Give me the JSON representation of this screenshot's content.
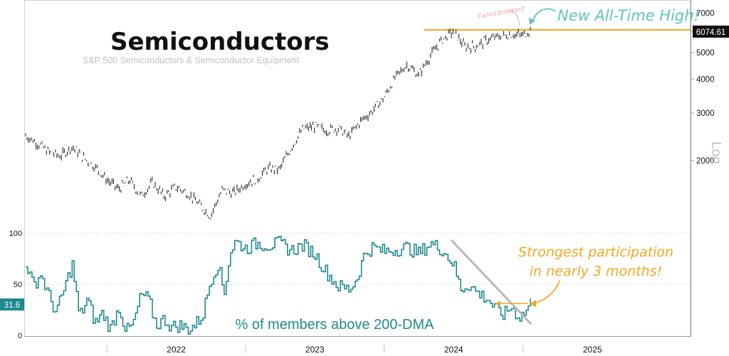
{
  "chart_data": [
    {
      "type": "line",
      "title": "Semiconductors",
      "subtitle": "S&P 500 Semiconductors & Semiconductor Equipment",
      "scale": "log",
      "scale_label": "Log",
      "y_ticks": [
        2000,
        3000,
        4000,
        5000,
        6000,
        7000
      ],
      "y_tick_labels": [
        "2000",
        "3000",
        "4000",
        "5000",
        "",
        "7000"
      ],
      "ylim": [
        1150,
        7500
      ],
      "last_value": 6074.61,
      "last_value_label": "6074.61",
      "reference_line": 6074.61,
      "annotation": "New All-Time High!",
      "annotation_faded": "Failed breakout",
      "series": [
        {
          "values_by_date": [
            [
              "2021-06-01",
              2480
            ],
            [
              "2021-07-01",
              2330
            ],
            [
              "2021-08-01",
              2150
            ],
            [
              "2021-09-01",
              2080
            ],
            [
              "2021-10-01",
              2250
            ],
            [
              "2021-11-01",
              2050
            ],
            [
              "2021-12-01",
              1900
            ],
            [
              "2022-01-01",
              1700
            ],
            [
              "2022-02-01",
              1570
            ],
            [
              "2022-03-01",
              1700
            ],
            [
              "2022-04-01",
              1480
            ],
            [
              "2022-05-01",
              1660
            ],
            [
              "2022-06-01",
              1480
            ],
            [
              "2022-07-01",
              1600
            ],
            [
              "2022-08-01",
              1520
            ],
            [
              "2022-09-01",
              1380
            ],
            [
              "2022-10-01",
              1250
            ],
            [
              "2022-11-01",
              1560
            ],
            [
              "2022-12-01",
              1520
            ],
            [
              "2023-01-01",
              1650
            ],
            [
              "2023-02-01",
              1720
            ],
            [
              "2023-03-01",
              1870
            ],
            [
              "2023-04-01",
              1860
            ],
            [
              "2023-05-01",
              2230
            ],
            [
              "2023-06-01",
              2610
            ],
            [
              "2023-07-01",
              2680
            ],
            [
              "2023-08-01",
              2590
            ],
            [
              "2023-09-01",
              2640
            ],
            [
              "2023-10-01",
              2460
            ],
            [
              "2023-11-01",
              2810
            ],
            [
              "2023-12-01",
              3050
            ],
            [
              "2024-01-01",
              3420
            ],
            [
              "2024-02-01",
              4080
            ],
            [
              "2024-03-01",
              4520
            ],
            [
              "2024-04-01",
              4130
            ],
            [
              "2024-05-01",
              4850
            ],
            [
              "2024-06-01",
              5570
            ],
            [
              "2024-07-01",
              6000
            ],
            [
              "2024-08-01",
              5250
            ],
            [
              "2024-09-01",
              5300
            ],
            [
              "2024-10-01",
              5600
            ],
            [
              "2024-11-01",
              5750
            ],
            [
              "2024-12-01",
              5850
            ],
            [
              "2025-01-01",
              5800
            ],
            [
              "2025-01-20",
              6074.61
            ]
          ]
        }
      ]
    },
    {
      "type": "line",
      "label": "% of members above 200-DMA",
      "y_ticks": [
        0,
        50,
        100
      ],
      "ylim": [
        0,
        100
      ],
      "last_value": 31.6,
      "last_value_label": "31.6",
      "annotation": "Strongest participation in nearly 3 months!",
      "annotation_line1": "Strongest participation",
      "annotation_line2": "in nearly 3 months!",
      "series": [
        {
          "values_by_date": [
            [
              "2021-06-01",
              72
            ],
            [
              "2021-06-20",
              48
            ],
            [
              "2021-07-10",
              60
            ],
            [
              "2021-08-01",
              38
            ],
            [
              "2021-08-20",
              22
            ],
            [
              "2021-09-10",
              45
            ],
            [
              "2021-10-01",
              70
            ],
            [
              "2021-10-20",
              18
            ],
            [
              "2021-11-10",
              35
            ],
            [
              "2021-12-01",
              12
            ],
            [
              "2021-12-20",
              22
            ],
            [
              "2022-01-10",
              6
            ],
            [
              "2022-02-01",
              28
            ],
            [
              "2022-02-20",
              4
            ],
            [
              "2022-03-10",
              10
            ],
            [
              "2022-04-01",
              40
            ],
            [
              "2022-04-20",
              35
            ],
            [
              "2022-05-10",
              10
            ],
            [
              "2022-06-01",
              16
            ],
            [
              "2022-06-20",
              8
            ],
            [
              "2022-07-10",
              10
            ],
            [
              "2022-08-01",
              6
            ],
            [
              "2022-08-20",
              10
            ],
            [
              "2022-09-10",
              20
            ],
            [
              "2022-10-01",
              55
            ],
            [
              "2022-10-20",
              70
            ],
            [
              "2022-11-05",
              40
            ],
            [
              "2022-11-20",
              80
            ],
            [
              "2022-12-05",
              92
            ],
            [
              "2023-01-01",
              85
            ],
            [
              "2023-02-01",
              90
            ],
            [
              "2023-03-01",
              88
            ],
            [
              "2023-04-01",
              90
            ],
            [
              "2023-05-01",
              83
            ],
            [
              "2023-06-01",
              88
            ],
            [
              "2023-07-01",
              80
            ],
            [
              "2023-08-01",
              62
            ],
            [
              "2023-09-01",
              48
            ],
            [
              "2023-10-01",
              45
            ],
            [
              "2023-10-20",
              55
            ],
            [
              "2023-11-10",
              80
            ],
            [
              "2023-12-01",
              86
            ],
            [
              "2024-01-01",
              82
            ],
            [
              "2024-02-01",
              84
            ],
            [
              "2024-03-01",
              86
            ],
            [
              "2024-04-01",
              80
            ],
            [
              "2024-05-01",
              90
            ],
            [
              "2024-06-01",
              84
            ],
            [
              "2024-07-01",
              70
            ],
            [
              "2024-07-20",
              45
            ],
            [
              "2024-08-10",
              50
            ],
            [
              "2024-09-01",
              42
            ],
            [
              "2024-10-01",
              35
            ],
            [
              "2024-10-20",
              25
            ],
            [
              "2024-11-10",
              20
            ],
            [
              "2024-12-01",
              28
            ],
            [
              "2024-12-20",
              18
            ],
            [
              "2025-01-05",
              22
            ],
            [
              "2025-01-20",
              31.6
            ]
          ]
        }
      ]
    }
  ],
  "x_axis": {
    "tick_labels": [
      "2022",
      "2023",
      "2024",
      "2025"
    ]
  },
  "colors": {
    "price": "#111111",
    "breadth": "#1f8a8f",
    "highlight": "#f5a623",
    "annotation_teal": "#5ec4c4",
    "faded_red": "#f2a6a6",
    "trendline": "#b8b8b8",
    "grid": "#dcdcdc"
  }
}
